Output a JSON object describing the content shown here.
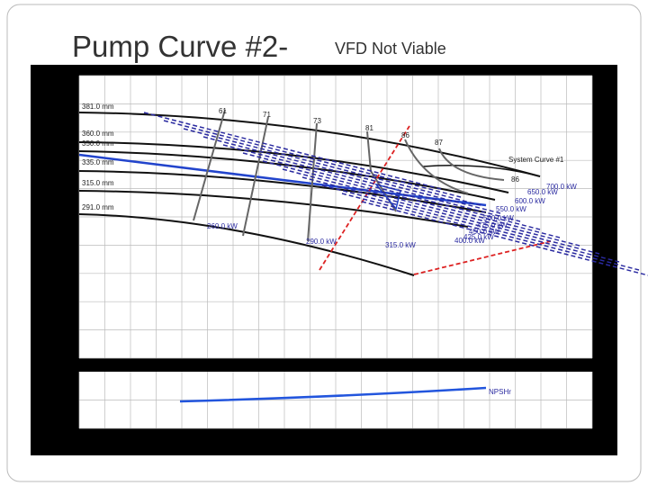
{
  "title": {
    "main": "Pump Curve #2-",
    "sub": "VFD Not Viable"
  },
  "chart": {
    "diameters": [
      "381.0 mm",
      "360.0 mm",
      "350.0 mm",
      "335.0 mm",
      "315.0 mm",
      "291.0 mm"
    ],
    "efficiencies": [
      "61",
      "71",
      "73",
      "81",
      "86",
      "87",
      "86"
    ],
    "system_curve": "System Curve #1",
    "power_labels": [
      "700.0 kW",
      "650.0 kW",
      "600.0 kW",
      "550.0 kW",
      "500.0 kW",
      "475.0 kW",
      "450.0 kW",
      "425.0 kW",
      "400.0 kW",
      "260.0 kW",
      "290.0 kW",
      "315.0 kW"
    ],
    "npsh_label": "NPSHr"
  }
}
